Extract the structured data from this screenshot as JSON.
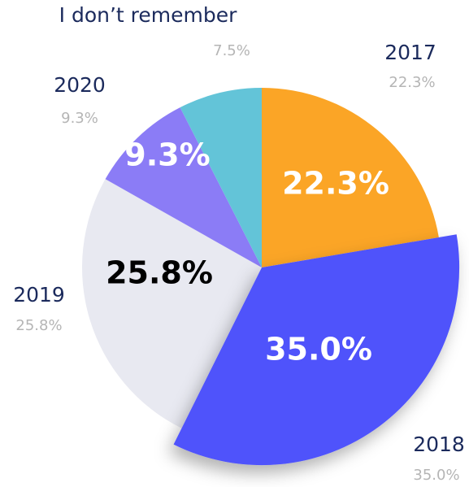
{
  "chart_data": {
    "type": "pie",
    "categories": [
      "2017",
      "2018",
      "2019",
      "2020",
      "I don’t remember"
    ],
    "values": [
      22.3,
      35.0,
      25.8,
      9.3,
      7.5
    ],
    "value_labels": [
      "22.3%",
      "35.0%",
      "25.8%",
      "9.3%",
      "7.5%"
    ],
    "colors": [
      "#fba526",
      "#4f53fb",
      "#e8e9f1",
      "#8b7cf6",
      "#63c4d8"
    ]
  }
}
